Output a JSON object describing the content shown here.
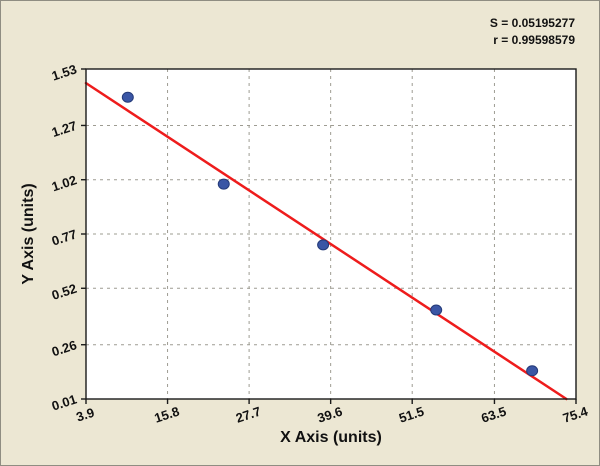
{
  "chart_data": {
    "type": "scatter",
    "title": "",
    "xlabel": "X Axis (units)",
    "ylabel": "Y Axis (units)",
    "x_tick_labels": [
      "3.9",
      "15.8",
      "27.7",
      "39.6",
      "51.5",
      "63.5",
      "75.4"
    ],
    "y_tick_labels": [
      "0.01",
      "0.26",
      "0.52",
      "0.77",
      "1.02",
      "1.27",
      "1.53"
    ],
    "xlim": [
      3.9,
      75.4
    ],
    "ylim": [
      0.01,
      1.53
    ],
    "grid": true,
    "legend": "none",
    "points": [
      {
        "x": 10.0,
        "y": 1.4
      },
      {
        "x": 24.0,
        "y": 1.0
      },
      {
        "x": 38.5,
        "y": 0.72
      },
      {
        "x": 55.0,
        "y": 0.42
      },
      {
        "x": 69.0,
        "y": 0.14
      }
    ],
    "fit_line": {
      "x1": 3.9,
      "y1": 1.465,
      "x2": 74.0,
      "y2": 0.01
    },
    "stats": [
      "S = 0.05195277",
      "r = 0.99598579"
    ],
    "colors": {
      "background": "#ece7d3",
      "plot_bg": "#ffffff",
      "grid": "#9e9c92",
      "frame": "#1a1a1a",
      "line": "#ee1c1c",
      "point_fill": "#3a56a5",
      "point_stroke": "#243a78"
    }
  }
}
